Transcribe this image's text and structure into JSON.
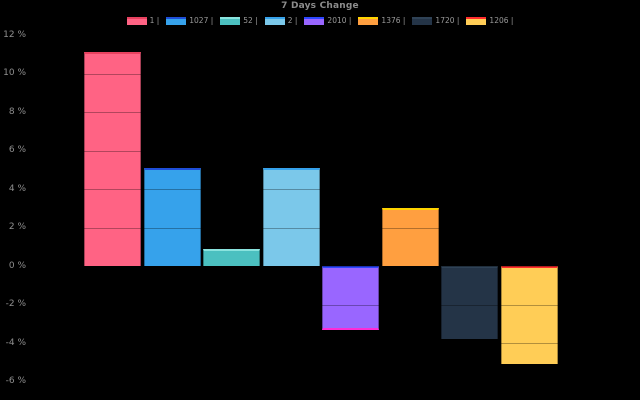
{
  "window": {
    "background": "#000000"
  },
  "chart": {
    "title": "7 Days Change",
    "title_color": "#8c8c8c",
    "axis_label_color": "#8f8f8f",
    "legend_label_color": "#9a9a9a"
  },
  "chart_data": {
    "type": "bar",
    "title": "7 Days Change",
    "xlabel": "",
    "ylabel": "",
    "unit": "%",
    "ylim": [
      -7,
      12.5
    ],
    "grid": true,
    "legend_position": "top",
    "yticks": [
      {
        "value": 12,
        "label": "12 %"
      },
      {
        "value": 10,
        "label": "10 %"
      },
      {
        "value": 8,
        "label": "8 %"
      },
      {
        "value": 6,
        "label": "6 %"
      },
      {
        "value": 4,
        "label": "4 %"
      },
      {
        "value": 2,
        "label": "2 %"
      },
      {
        "value": 0,
        "label": "0 %"
      },
      {
        "value": -2,
        "label": "-2 %"
      },
      {
        "value": -4,
        "label": "-4 %"
      },
      {
        "value": -6,
        "label": "-6 %"
      }
    ],
    "categories": [
      "1 |",
      "1027 |",
      "52 |",
      "2 |",
      "2010 |",
      "1376 |",
      "1720 |",
      "1206 |"
    ],
    "series": [
      {
        "name": "1 |",
        "value": 11.1,
        "color": "#ff6384",
        "accent": "#e8415f"
      },
      {
        "name": "1027 |",
        "value": 5.1,
        "color": "#36a2eb",
        "accent": "#1e4ed8"
      },
      {
        "name": "52 |",
        "value": 0.9,
        "color": "#4bc0c0",
        "accent": "#8ae3de"
      },
      {
        "name": "2 |",
        "value": 5.1,
        "color": "#7bc8ea",
        "accent": "#36a2eb"
      },
      {
        "name": "2010 |",
        "value": -3.3,
        "color": "#9966ff",
        "accent": "#2c47ff",
        "accent_bottom": "#ff2bd6"
      },
      {
        "name": "1376 |",
        "value": 3.0,
        "color": "#ff9f40",
        "accent": "#ffd400"
      },
      {
        "name": "1720 |",
        "value": -3.8,
        "color": "#243447",
        "accent": "#2f4256"
      },
      {
        "name": "1206 |",
        "value": -5.1,
        "color": "#ffcd56",
        "accent": "#ff2d2d"
      }
    ]
  }
}
